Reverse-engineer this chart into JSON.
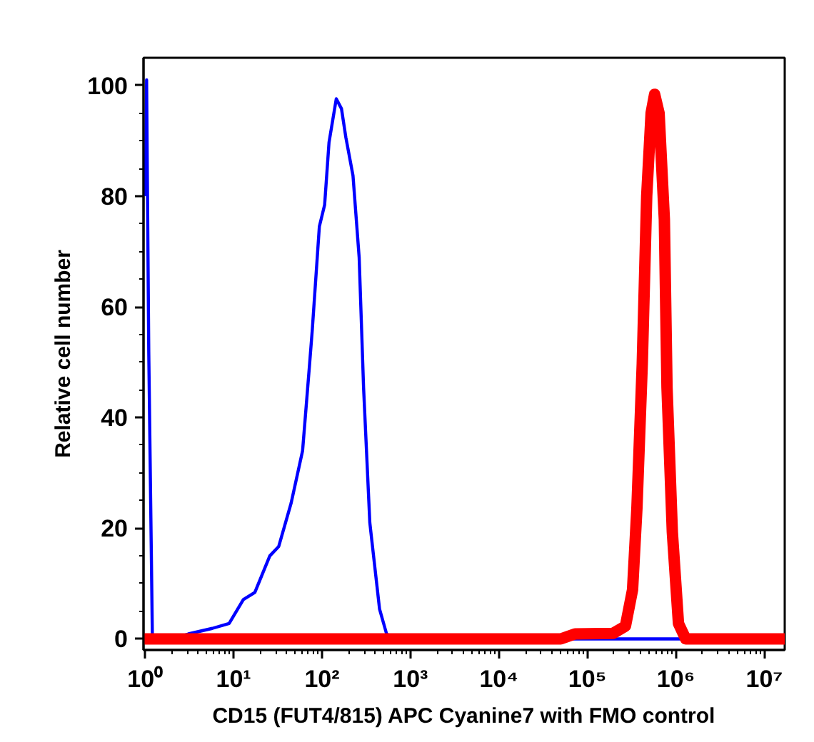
{
  "chart_data": {
    "type": "line",
    "xlabel": "CD15 (FUT4/815) APC Cyanine7 with FMO control",
    "ylabel": "Relative cell number",
    "log": "x",
    "grid": false,
    "marker": "none",
    "line_style": "solid",
    "xlim": [
      0.96,
      17000000
    ],
    "ylim": [
      -2,
      105
    ],
    "xticks": [
      {
        "value": 1,
        "label": "10⁰"
      },
      {
        "value": 10,
        "label": "10¹"
      },
      {
        "value": 100,
        "label": "10²"
      },
      {
        "value": 1000,
        "label": "10³"
      },
      {
        "value": 10000,
        "label": "10⁴"
      },
      {
        "value": 100000,
        "label": "10⁵"
      },
      {
        "value": 1000000,
        "label": "10⁶"
      },
      {
        "value": 10000000,
        "label": "10⁷"
      }
    ],
    "yticks": [
      0,
      20,
      40,
      60,
      80,
      100
    ],
    "series": [
      {
        "color": "#0000ff",
        "x": [
          1.01,
          1.04,
          1.1,
          1.21,
          2.09,
          3.09,
          5.75,
          8.91,
          12.9,
          17.4,
          25.7,
          32.4,
          44.7,
          60.3,
          72.4,
          77.6,
          93.3,
          107,
          120,
          145,
          166,
          186,
          224,
          263,
          295,
          347,
          447,
          537,
          646,
          17000000
        ],
        "values": [
          80,
          101,
          52,
          0,
          0,
          0.9,
          1.9,
          2.8,
          7.1,
          8.4,
          15,
          16.7,
          24.5,
          34,
          49.7,
          55.8,
          74.5,
          78.4,
          89.7,
          97.6,
          95.8,
          90.6,
          83.7,
          68.9,
          45.4,
          21,
          5.4,
          0.9,
          0,
          0
        ]
      },
      {
        "color": "#ff0000",
        "x": [
          0.96,
          50000,
          72400,
          195000,
          269000,
          324000,
          363000,
          417000,
          468000,
          525000,
          575000,
          646000,
          741000,
          794000,
          912000,
          1070000,
          1290000,
          17000000
        ],
        "values": [
          0,
          0,
          0.9,
          1.0,
          2.3,
          8.9,
          23.7,
          49.7,
          80,
          95,
          98.4,
          95,
          75.8,
          45.4,
          19.3,
          2.8,
          0,
          0
        ]
      }
    ]
  }
}
